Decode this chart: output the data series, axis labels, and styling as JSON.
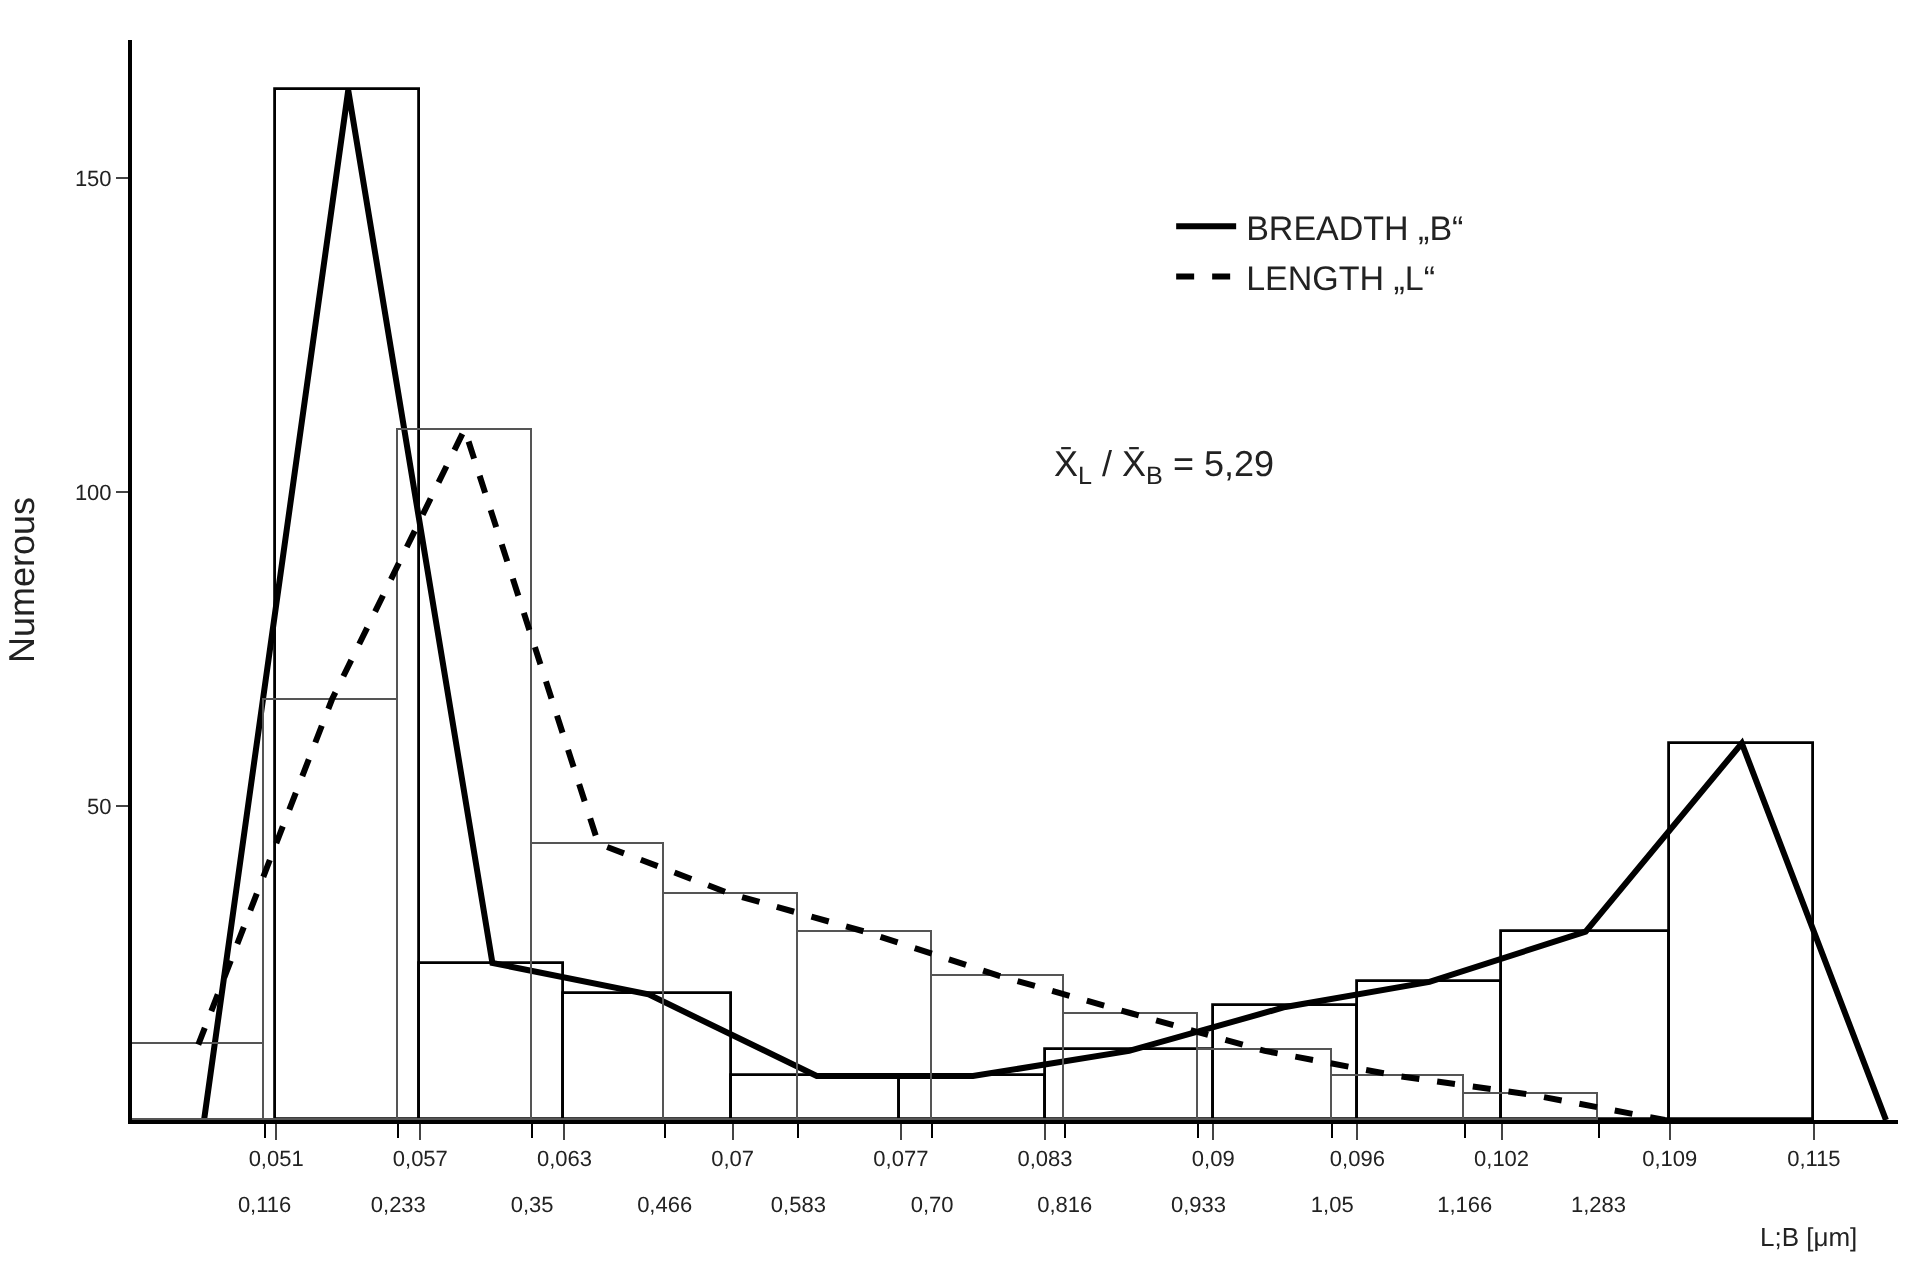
{
  "chart_data": {
    "type": "histogram",
    "ylabel": "Numerous",
    "xlabel": "L;B [μm]",
    "annotations": [
      "X̄$_{L}$ / X̄$_{B}$ = 5,29"
    ],
    "xlim": [
      0.045,
      0.1185
    ],
    "x2lim": [
      0,
      1.545
    ],
    "ylim": [
      0,
      172
    ],
    "yticks": [
      50,
      100,
      150
    ],
    "xticks": [
      {
        "value": 0.051,
        "label": "0,051"
      },
      {
        "value": 0.057,
        "label": "0,057"
      },
      {
        "value": 0.063,
        "label": "0,063"
      },
      {
        "value": 0.07,
        "label": "0,07"
      },
      {
        "value": 0.077,
        "label": "0,077"
      },
      {
        "value": 0.083,
        "label": "0,083"
      },
      {
        "value": 0.09,
        "label": "0,09"
      },
      {
        "value": 0.096,
        "label": "0,096"
      },
      {
        "value": 0.102,
        "label": "0,102"
      },
      {
        "value": 0.109,
        "label": "0,109"
      },
      {
        "value": 0.115,
        "label": "0,115"
      }
    ],
    "x2ticks": [
      {
        "value": 0.116,
        "label": "0,116"
      },
      {
        "value": 0.233,
        "label": "0,233"
      },
      {
        "value": 0.35,
        "label": "0,35"
      },
      {
        "value": 0.466,
        "label": "0,466"
      },
      {
        "value": 0.583,
        "label": "0,583"
      },
      {
        "value": 0.7,
        "label": "0,70"
      },
      {
        "value": 0.816,
        "label": "0,816"
      },
      {
        "value": 0.933,
        "label": "0,933"
      },
      {
        "value": 1.05,
        "label": "1,05"
      },
      {
        "value": 1.166,
        "label": "1,166"
      },
      {
        "value": 1.283,
        "label": "1,283"
      }
    ],
    "legend": "top right",
    "series": [
      {
        "type": "histogram",
        "color": "#000000",
        "line_style": "solid",
        "bins": [
          0.051,
          0.057,
          0.063,
          0.07,
          0.077,
          0.083,
          0.09,
          0.096,
          0.102,
          0.109,
          0.115
        ],
        "values": [
          164,
          25,
          20,
          7,
          7,
          11,
          18,
          22,
          30,
          60
        ]
      },
      {
        "type": "histogram",
        "axis": "x2",
        "color": "#555555",
        "line_style": "dashed",
        "bins": [
          0,
          0.116,
          0.233,
          0.35,
          0.466,
          0.583,
          0.7,
          0.816,
          0.933,
          1.05,
          1.166,
          1.283
        ],
        "values": [
          12,
          67,
          110,
          44,
          36,
          30,
          23,
          17,
          11,
          7,
          4
        ]
      },
      {
        "type": "line",
        "name": "BREADTH „B“",
        "color": "#000000",
        "line_style": "solid",
        "x": [
          0.048,
          0.054,
          0.06,
          0.0665,
          0.0735,
          0.08,
          0.0865,
          0.093,
          0.099,
          0.1055,
          0.112,
          0.118
        ],
        "values": [
          0,
          164,
          25,
          20,
          7,
          7,
          11,
          18,
          22,
          30,
          60,
          0
        ]
      },
      {
        "type": "line",
        "name": "LENGTH „L“",
        "axis": "x2",
        "color": "#000000",
        "line_style": "dashed",
        "x": [
          0.058,
          0.175,
          0.291,
          0.408,
          0.524,
          0.641,
          0.758,
          0.874,
          0.991,
          1.108,
          1.225,
          1.341
        ],
        "values": [
          12,
          67,
          110,
          44,
          36,
          30,
          23,
          17,
          11,
          7,
          4,
          0
        ]
      }
    ]
  }
}
